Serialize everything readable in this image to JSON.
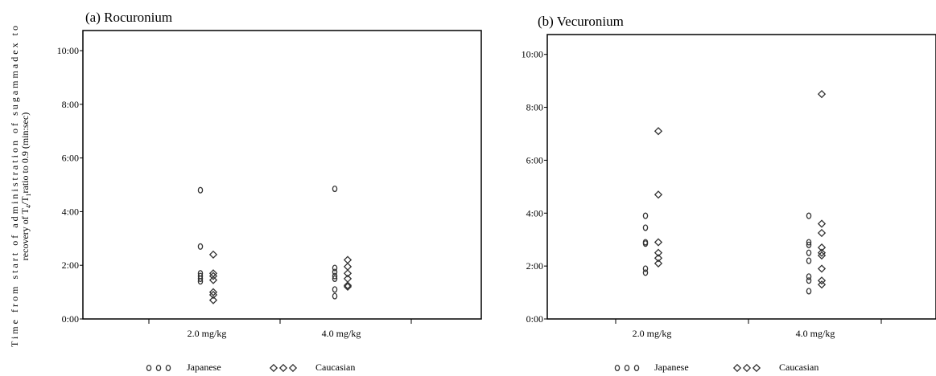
{
  "ylabel_line1": "Time from start of administration of sugammadex to",
  "ylabel_line2_pre": "recovery of T",
  "ylabel_line2_sub1": "4",
  "ylabel_line2_mid": "/T",
  "ylabel_line2_sub2": "1",
  "ylabel_line2_post": "ratio to 0.9 (min:sec)",
  "chart_data": [
    {
      "type": "scatter",
      "title": "(a) Rocuronium",
      "categories": [
        "2.0 mg/kg",
        "4.0 mg/kg"
      ],
      "yticks": [
        "0:00",
        "2:00",
        "4:00",
        "6:00",
        "8:00",
        "10:00"
      ],
      "ylim_min": [
        0,
        10.75
      ],
      "legend": [
        "Japanese",
        "Caucasian"
      ],
      "legend_placement": "bottom",
      "series": [
        {
          "name": "Japanese",
          "marker": "circle",
          "points": [
            {
              "category": "2.0 mg/kg",
              "y": 4.8
            },
            {
              "category": "2.0 mg/kg",
              "y": 2.7
            },
            {
              "category": "2.0 mg/kg",
              "y": 1.7
            },
            {
              "category": "2.0 mg/kg",
              "y": 1.6
            },
            {
              "category": "2.0 mg/kg",
              "y": 1.5
            },
            {
              "category": "2.0 mg/kg",
              "y": 1.4
            },
            {
              "category": "4.0 mg/kg",
              "y": 4.85
            },
            {
              "category": "4.0 mg/kg",
              "y": 1.9
            },
            {
              "category": "4.0 mg/kg",
              "y": 1.75
            },
            {
              "category": "4.0 mg/kg",
              "y": 1.6
            },
            {
              "category": "4.0 mg/kg",
              "y": 1.5
            },
            {
              "category": "4.0 mg/kg",
              "y": 1.1
            },
            {
              "category": "4.0 mg/kg",
              "y": 0.85
            }
          ]
        },
        {
          "name": "Caucasian",
          "marker": "diamond",
          "points": [
            {
              "category": "2.0 mg/kg",
              "y": 2.4
            },
            {
              "category": "2.0 mg/kg",
              "y": 1.7
            },
            {
              "category": "2.0 mg/kg",
              "y": 1.6
            },
            {
              "category": "2.0 mg/kg",
              "y": 1.45
            },
            {
              "category": "2.0 mg/kg",
              "y": 1.0
            },
            {
              "category": "2.0 mg/kg",
              "y": 0.9
            },
            {
              "category": "2.0 mg/kg",
              "y": 0.7
            },
            {
              "category": "4.0 mg/kg",
              "y": 2.2
            },
            {
              "category": "4.0 mg/kg",
              "y": 1.95
            },
            {
              "category": "4.0 mg/kg",
              "y": 1.7
            },
            {
              "category": "4.0 mg/kg",
              "y": 1.5
            },
            {
              "category": "4.0 mg/kg",
              "y": 1.25
            },
            {
              "category": "4.0 mg/kg",
              "y": 1.2
            }
          ]
        }
      ]
    },
    {
      "type": "scatter",
      "title": "(b) Vecuronium",
      "categories": [
        "2.0 mg/kg",
        "4.0 mg/kg"
      ],
      "yticks": [
        "0:00",
        "2:00",
        "4:00",
        "6:00",
        "8:00",
        "10:00"
      ],
      "ylim_min": [
        0,
        10.75
      ],
      "legend": [
        "Japanese",
        "Caucasian"
      ],
      "legend_placement": "bottom",
      "series": [
        {
          "name": "Japanese",
          "marker": "circle",
          "points": [
            {
              "category": "2.0 mg/kg",
              "y": 3.9
            },
            {
              "category": "2.0 mg/kg",
              "y": 3.45
            },
            {
              "category": "2.0 mg/kg",
              "y": 2.9
            },
            {
              "category": "2.0 mg/kg",
              "y": 2.85
            },
            {
              "category": "2.0 mg/kg",
              "y": 1.9
            },
            {
              "category": "2.0 mg/kg",
              "y": 1.75
            },
            {
              "category": "4.0 mg/kg",
              "y": 3.9
            },
            {
              "category": "4.0 mg/kg",
              "y": 2.9
            },
            {
              "category": "4.0 mg/kg",
              "y": 2.8
            },
            {
              "category": "4.0 mg/kg",
              "y": 2.5
            },
            {
              "category": "4.0 mg/kg",
              "y": 2.2
            },
            {
              "category": "4.0 mg/kg",
              "y": 1.6
            },
            {
              "category": "4.0 mg/kg",
              "y": 1.45
            },
            {
              "category": "4.0 mg/kg",
              "y": 1.05
            }
          ]
        },
        {
          "name": "Caucasian",
          "marker": "diamond",
          "points": [
            {
              "category": "2.0 mg/kg",
              "y": 7.1
            },
            {
              "category": "2.0 mg/kg",
              "y": 4.7
            },
            {
              "category": "2.0 mg/kg",
              "y": 2.9
            },
            {
              "category": "2.0 mg/kg",
              "y": 2.5
            },
            {
              "category": "2.0 mg/kg",
              "y": 2.3
            },
            {
              "category": "2.0 mg/kg",
              "y": 2.1
            },
            {
              "category": "4.0 mg/kg",
              "y": 8.5
            },
            {
              "category": "4.0 mg/kg",
              "y": 3.6
            },
            {
              "category": "4.0 mg/kg",
              "y": 3.25
            },
            {
              "category": "4.0 mg/kg",
              "y": 2.7
            },
            {
              "category": "4.0 mg/kg",
              "y": 2.5
            },
            {
              "category": "4.0 mg/kg",
              "y": 2.4
            },
            {
              "category": "4.0 mg/kg",
              "y": 1.9
            },
            {
              "category": "4.0 mg/kg",
              "y": 1.45
            },
            {
              "category": "4.0 mg/kg",
              "y": 1.3
            }
          ]
        }
      ]
    }
  ]
}
